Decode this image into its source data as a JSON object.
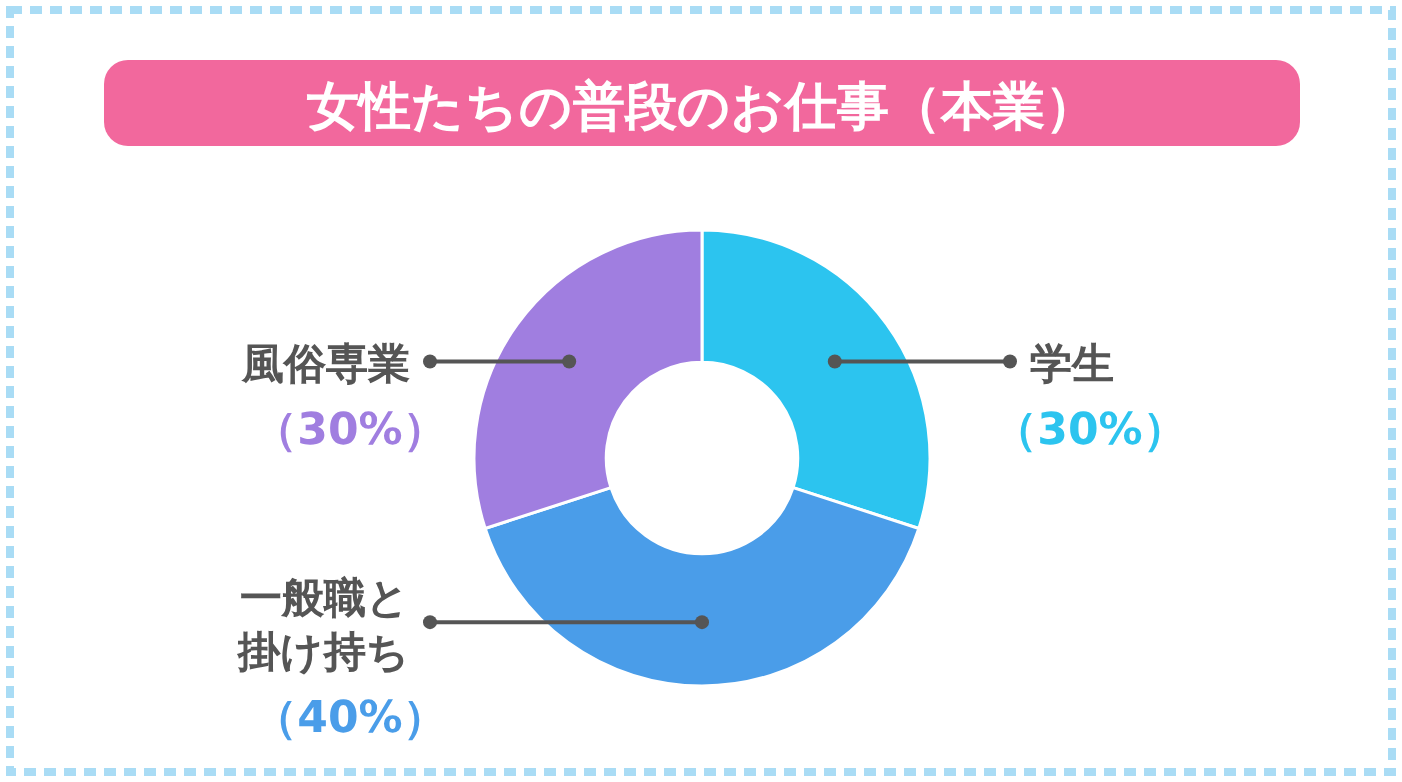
{
  "chart_data": {
    "type": "donut",
    "title": "女性たちの普段のお仕事（本業）",
    "categories": [
      "学生",
      "一般職と掛け持ち",
      "風俗専業"
    ],
    "values": [
      30,
      40,
      30
    ],
    "colors": [
      "#2cc4ef",
      "#4a9de9",
      "#a07ee0"
    ],
    "value_labels": [
      "（30%）",
      "（40%）",
      "（30%）"
    ]
  }
}
